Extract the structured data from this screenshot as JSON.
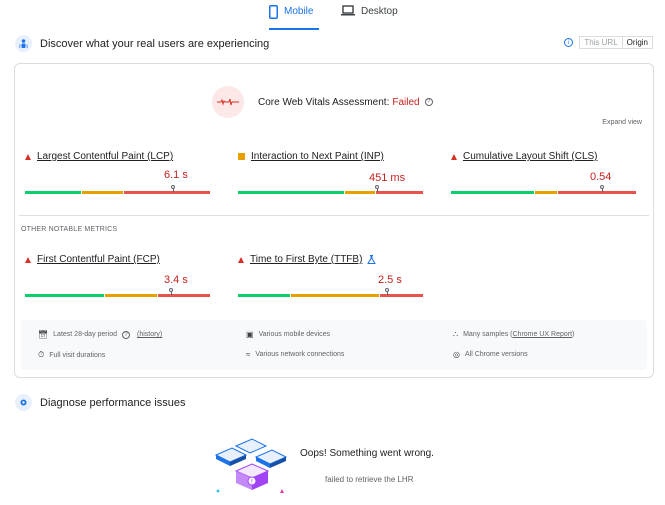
{
  "tabs": [
    {
      "label": "Mobile",
      "active": true
    },
    {
      "label": "Desktop",
      "active": false
    }
  ],
  "field_section": {
    "title": "Discover what your real users are experiencing",
    "url_label": "This URL",
    "origin_label": "Origin"
  },
  "assessment": {
    "prefix": "Core Web Vitals Assessment:",
    "status": "Failed",
    "expand": "Expand view"
  },
  "core_metrics": [
    {
      "name": "Largest Contentful Paint (LCP)",
      "value": "6.1 s",
      "rating": "poor"
    },
    {
      "name": "Interaction to Next Paint (INP)",
      "value": "451 ms",
      "rating": "needs-improvement"
    },
    {
      "name": "Cumulative Layout Shift (CLS)",
      "value": "0.54",
      "rating": "poor"
    }
  ],
  "other_heading": "OTHER NOTABLE METRICS",
  "other_metrics": [
    {
      "name": "First Contentful Paint (FCP)",
      "value": "3.4 s",
      "rating": "poor"
    },
    {
      "name": "Time to First Byte (TTFB)",
      "value": "2.5 s",
      "rating": "poor"
    }
  ],
  "footer": {
    "period": "Latest 28-day period",
    "history": "(history)",
    "durations": "Full visit durations",
    "devices": "Various mobile devices",
    "network": "Various network connections",
    "samples_prefix": "Many samples (",
    "samples_link": "Chrome UX Report",
    "samples_suffix": ")",
    "versions": "All Chrome versions"
  },
  "diagnose": {
    "title": "Diagnose performance issues",
    "error_title": "Oops! Something went wrong.",
    "error_detail": "failed to retrieve the LHR"
  },
  "colors": {
    "accent": "#1a73e8",
    "good": "#0cce6b",
    "average": "#e8a000",
    "poor": "#e5534b",
    "fail_text": "#c5221f"
  }
}
